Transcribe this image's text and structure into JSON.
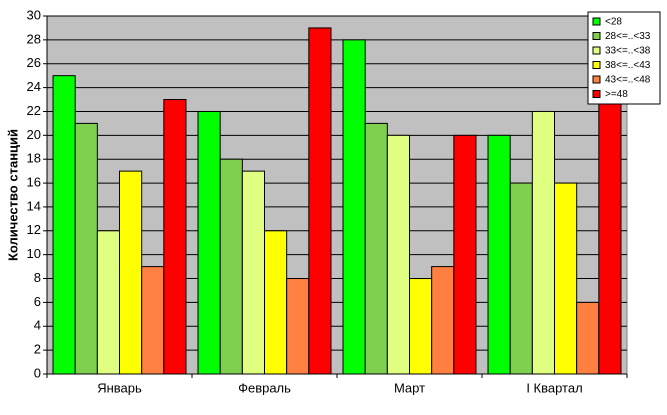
{
  "chart_data": {
    "type": "bar",
    "y_label": "Количество станций",
    "categories": [
      "Январь",
      "Февраль",
      "Март",
      "I Квартал"
    ],
    "series": [
      {
        "name": "<28",
        "color": "#00ff00",
        "values": [
          25,
          22,
          28,
          20
        ]
      },
      {
        "name": "28<=..<33",
        "color": "#80d050",
        "values": [
          21,
          18,
          21,
          16
        ]
      },
      {
        "name": "33<=..<38",
        "color": "#e0ff80",
        "values": [
          12,
          17,
          20,
          22
        ]
      },
      {
        "name": "38<=..<43",
        "color": "#ffff00",
        "values": [
          17,
          12,
          8,
          16
        ]
      },
      {
        "name": "43<=..<48",
        "color": "#ff8040",
        "values": [
          9,
          8,
          9,
          6
        ]
      },
      {
        "name": ">=48",
        "color": "#ff0000",
        "values": [
          23,
          29,
          20,
          23
        ]
      }
    ],
    "ylim": [
      0,
      30
    ],
    "yticks": [
      0,
      2,
      4,
      6,
      8,
      10,
      12,
      14,
      16,
      18,
      20,
      22,
      24,
      26,
      28,
      30
    ],
    "grid": true,
    "legend": "top-right"
  }
}
